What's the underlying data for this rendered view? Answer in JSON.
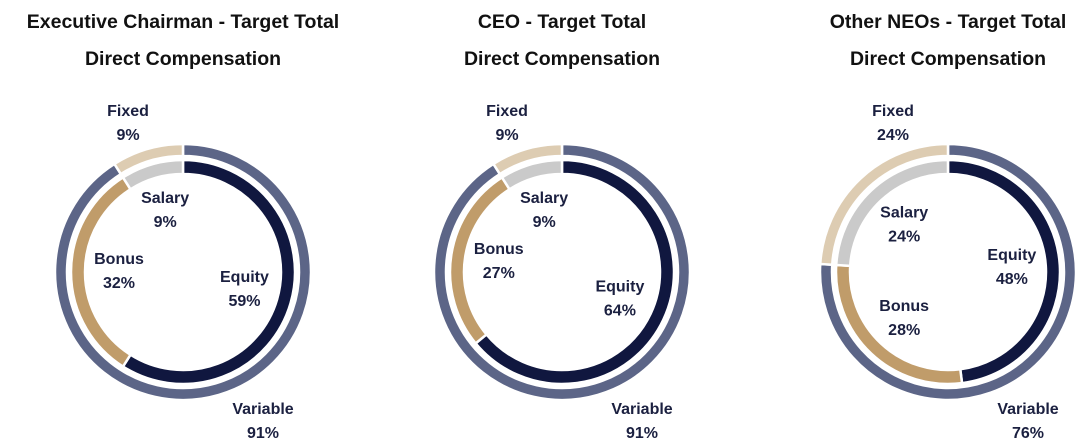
{
  "chart_data": [
    {
      "type": "donut",
      "title": [
        "Executive Chairman - Target Total",
        "Direct Compensation"
      ],
      "outer": {
        "categories": [
          "Variable",
          "Fixed"
        ],
        "values": [
          91,
          9
        ],
        "value_labels": [
          "91%",
          "9%"
        ],
        "colors": [
          "#5c6587",
          "#ddccb2"
        ]
      },
      "inner": {
        "categories": [
          "Equity",
          "Bonus",
          "Salary"
        ],
        "values": [
          59,
          32,
          9
        ],
        "value_labels": [
          "59%",
          "32%",
          "9%"
        ],
        "colors": [
          "#10173f",
          "#c09c6a",
          "#cacaca"
        ]
      }
    },
    {
      "type": "donut",
      "title": [
        "CEO - Target Total",
        "Direct Compensation"
      ],
      "outer": {
        "categories": [
          "Variable",
          "Fixed"
        ],
        "values": [
          91,
          9
        ],
        "value_labels": [
          "91%",
          "9%"
        ],
        "colors": [
          "#5c6587",
          "#ddccb2"
        ]
      },
      "inner": {
        "categories": [
          "Equity",
          "Bonus",
          "Salary"
        ],
        "values": [
          64,
          27,
          9
        ],
        "value_labels": [
          "64%",
          "27%",
          "9%"
        ],
        "colors": [
          "#10173f",
          "#c09c6a",
          "#cacaca"
        ]
      }
    },
    {
      "type": "donut",
      "title": [
        "Other NEOs - Target Total",
        "Direct Compensation"
      ],
      "outer": {
        "categories": [
          "Variable",
          "Fixed"
        ],
        "values": [
          76,
          24
        ],
        "value_labels": [
          "76%",
          "24%"
        ],
        "colors": [
          "#5c6587",
          "#ddccb2"
        ]
      },
      "inner": {
        "categories": [
          "Equity",
          "Bonus",
          "Salary"
        ],
        "values": [
          48,
          28,
          24
        ],
        "value_labels": [
          "48%",
          "28%",
          "24%"
        ],
        "colors": [
          "#10173f",
          "#c09c6a",
          "#cacaca"
        ]
      }
    }
  ]
}
